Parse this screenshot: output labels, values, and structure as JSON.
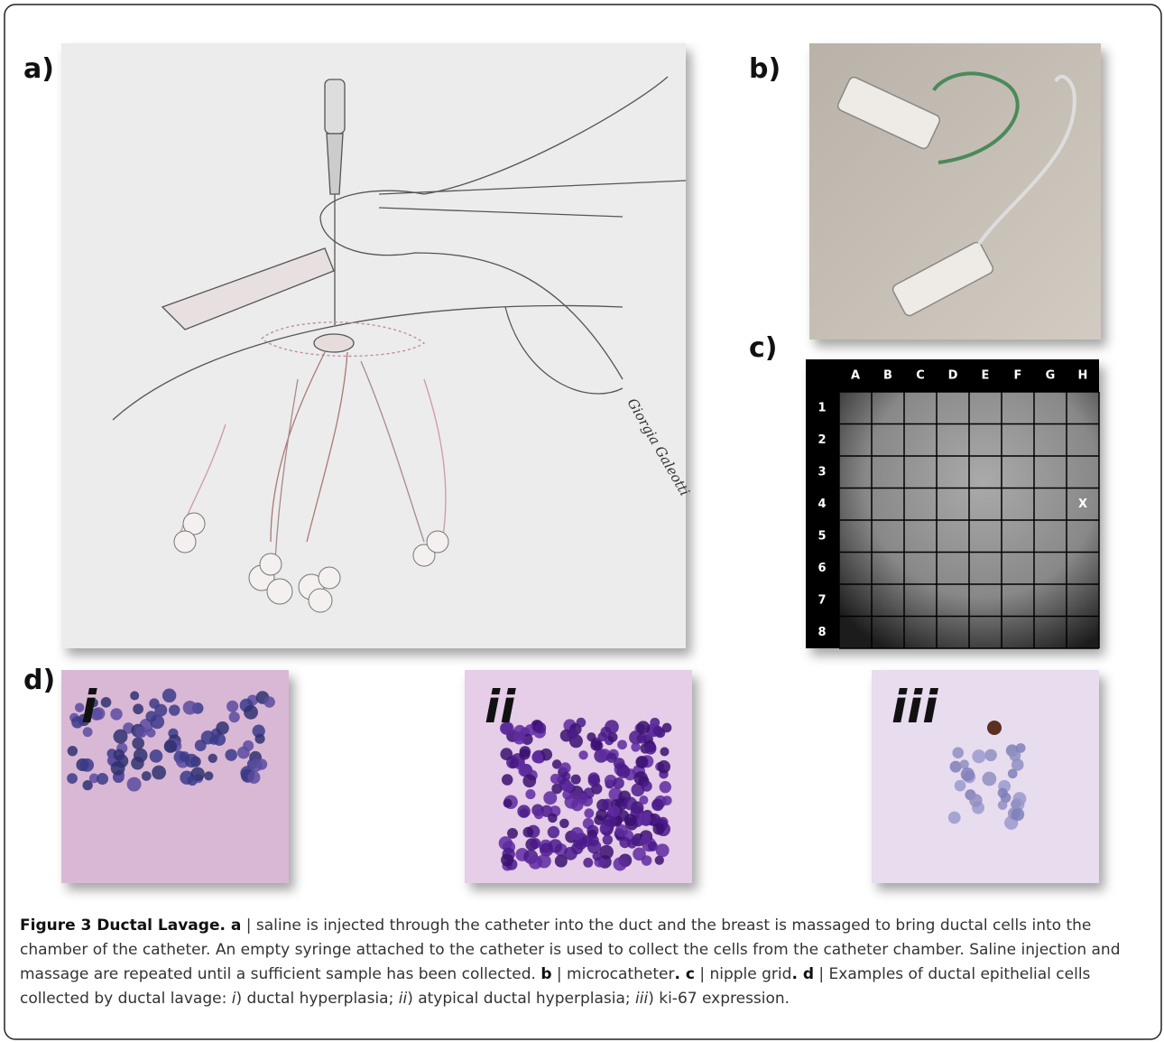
{
  "panels": {
    "a": "a)",
    "b": "b)",
    "c": "c)",
    "d": "d)"
  },
  "grid": {
    "columns": [
      "A",
      "B",
      "C",
      "D",
      "E",
      "F",
      "G",
      "H"
    ],
    "rows": [
      "1",
      "2",
      "3",
      "4",
      "5",
      "6",
      "7",
      "8"
    ],
    "marker": "X"
  },
  "signature": "Giorgia Galeotti",
  "micrographs": [
    "i",
    "ii",
    "iii"
  ],
  "caption": {
    "parts": [
      "Figure 3 Ductal Lavage. a",
      " | saline is injected through the catheter into the duct and the breast is massaged to bring ductal cells into the chamber of the catheter. An empty syringe attached to the catheter is used to collect the cells from the catheter chamber. Saline injection and massage are repeated until a sufficient sample has been collected. ",
      "b",
      " | microcatheter",
      ". c",
      " | nipple grid",
      ". d",
      " | Examples of ductal epithelial cells collected by ductal lavage: ",
      "i",
      ") ductal hyperplasia; ",
      "ii",
      ") atypical ductal hyperplasia; ",
      "iii",
      ") ki-67 expression."
    ]
  }
}
